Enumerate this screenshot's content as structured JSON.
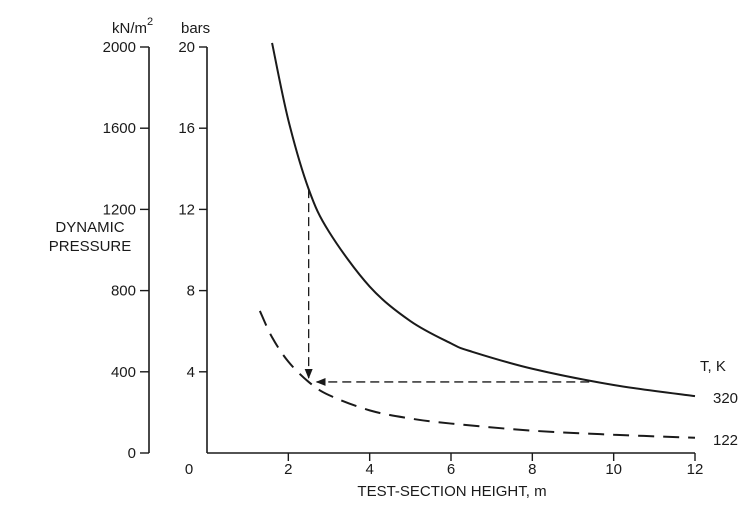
{
  "chart_data": {
    "type": "line",
    "ylabel_lines": [
      "DYNAMIC",
      "PRESSURE"
    ],
    "xlabel": "TEST-SECTION HEIGHT, m",
    "x_ticks": [
      0,
      2,
      4,
      6,
      8,
      10,
      12
    ],
    "xlim": [
      0,
      12
    ],
    "y_axes": [
      {
        "unit_label": "kN/m",
        "unit_superscript": "2",
        "ticks": [
          0,
          400,
          800,
          1200,
          1600,
          2000
        ],
        "ylim": [
          0,
          2000
        ]
      },
      {
        "unit_label": "bars",
        "ticks": [
          4,
          8,
          12,
          16,
          20
        ],
        "ylim": [
          0,
          20
        ]
      }
    ],
    "legend_title": "T, K",
    "series": [
      {
        "name": "320",
        "style": "solid",
        "x": [
          1.6,
          2.0,
          2.5,
          3.0,
          4.0,
          5.0,
          6.0,
          6.5,
          8.0,
          10.0,
          12.0
        ],
        "y": [
          20.2,
          16.4,
          13.0,
          10.9,
          8.2,
          6.5,
          5.4,
          5.0,
          4.15,
          3.35,
          2.8
        ]
      },
      {
        "name": "122",
        "style": "dashed",
        "x": [
          1.3,
          1.6,
          2.0,
          2.5,
          3.0,
          4.0,
          5.0,
          6.0,
          8.0,
          10.0,
          12.0
        ],
        "y": [
          7.0,
          5.7,
          4.5,
          3.5,
          2.85,
          2.1,
          1.7,
          1.45,
          1.1,
          0.9,
          0.75
        ]
      }
    ],
    "annotation_arrows": [
      {
        "from": [
          2.5,
          13.0
        ],
        "to": [
          2.5,
          3.5
        ]
      },
      {
        "from": [
          9.4,
          3.5
        ],
        "to": [
          2.5,
          3.5
        ]
      }
    ]
  }
}
